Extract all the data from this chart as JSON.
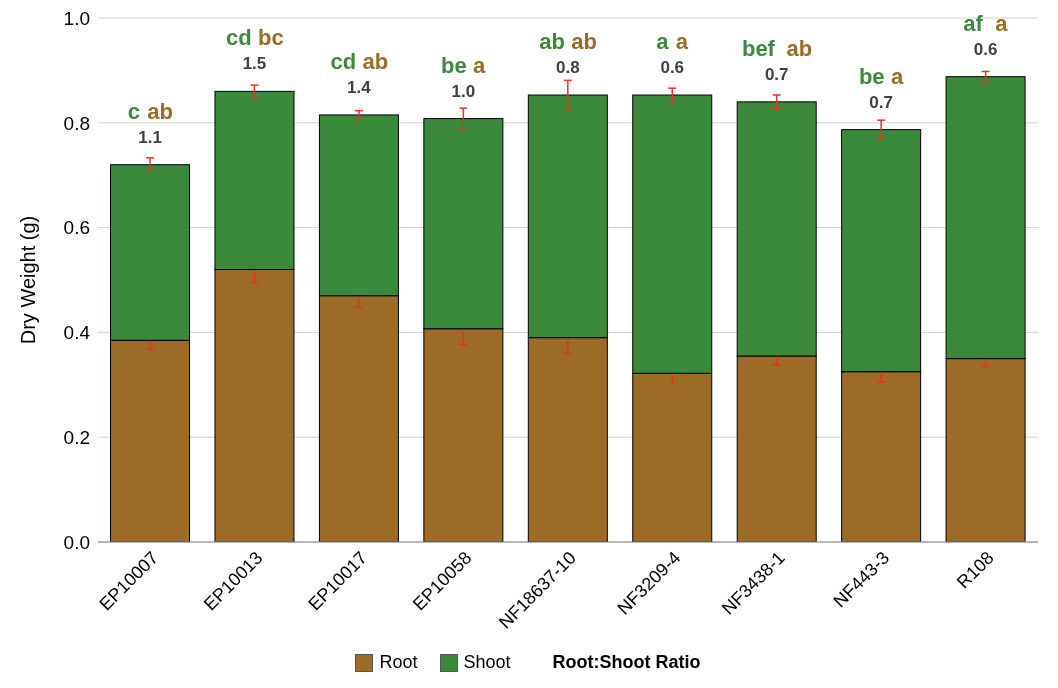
{
  "chart_data": {
    "type": "bar",
    "stacked": true,
    "ylabel": "Dry Weight (g)",
    "categories": [
      "EP10007",
      "EP10013",
      "EP10017",
      "EP10058",
      "NF18637-10",
      "NF3209-4",
      "NF3438-1",
      "NF443-3",
      "R108"
    ],
    "series": [
      {
        "name": "Root",
        "color": "#9c6b26",
        "values": [
          0.385,
          0.52,
          0.47,
          0.407,
          0.39,
          0.322,
          0.355,
          0.325,
          0.35
        ],
        "errors": [
          0.018,
          0.025,
          0.022,
          0.03,
          0.03,
          0.02,
          0.017,
          0.02,
          0.015
        ]
      },
      {
        "name": "Shoot",
        "color": "#3b8a3b",
        "values": [
          0.335,
          0.34,
          0.345,
          0.401,
          0.463,
          0.531,
          0.485,
          0.462,
          0.538
        ],
        "errors": [
          0.013,
          0.012,
          0.008,
          0.02,
          0.028,
          0.013,
          0.013,
          0.018,
          0.01
        ]
      }
    ],
    "ylim": [
      0,
      1
    ],
    "yticks": [
      {
        "value": 0,
        "label": "0.0"
      },
      {
        "value": 0.2,
        "label": "0.2"
      },
      {
        "value": 0.4,
        "label": "0.4"
      },
      {
        "value": 0.6,
        "label": "0.6"
      },
      {
        "value": 0.8,
        "label": "0.8"
      },
      {
        "value": 1,
        "label": "1.0"
      }
    ],
    "grid": "y",
    "legend": "bottom",
    "annotations": [
      {
        "text": "1.1",
        "x": "EP10007",
        "y": 0.72
      },
      {
        "text": "c",
        "x": "EP10007",
        "y": 0.72
      },
      {
        "text": "ab",
        "x": "EP10007",
        "y": 0.72
      },
      {
        "text": "1.5",
        "x": "EP10013",
        "y": 0.86
      },
      {
        "text": "cd",
        "x": "EP10013",
        "y": 0.86
      },
      {
        "text": "bc",
        "x": "EP10013",
        "y": 0.86
      },
      {
        "text": "1.4",
        "x": "EP10017",
        "y": 0.815
      },
      {
        "text": "cd",
        "x": "EP10017",
        "y": 0.815
      },
      {
        "text": "ab",
        "x": "EP10017",
        "y": 0.815
      },
      {
        "text": "1.0",
        "x": "EP10058",
        "y": 0.808
      },
      {
        "text": "be",
        "x": "EP10058",
        "y": 0.808
      },
      {
        "text": "a",
        "x": "EP10058",
        "y": 0.808
      },
      {
        "text": "0.8",
        "x": "NF18637-10",
        "y": 0.853
      },
      {
        "text": "ab",
        "x": "NF18637-10",
        "y": 0.853
      },
      {
        "text": "ab",
        "x": "NF18637-10",
        "y": 0.853
      },
      {
        "text": "0.6",
        "x": "NF3209-4",
        "y": 0.853
      },
      {
        "text": "a",
        "x": "NF3209-4",
        "y": 0.853
      },
      {
        "text": "a",
        "x": "NF3209-4",
        "y": 0.853
      },
      {
        "text": "0.7",
        "x": "NF3438-1",
        "y": 0.84
      },
      {
        "text": "bef",
        "x": "NF3438-1",
        "y": 0.84
      },
      {
        "text": "ab",
        "x": "NF3438-1",
        "y": 0.84
      },
      {
        "text": "0.7",
        "x": "NF443-3",
        "y": 0.787
      },
      {
        "text": "be",
        "x": "NF443-3",
        "y": 0.787
      },
      {
        "text": "a",
        "x": "NF443-3",
        "y": 0.787
      },
      {
        "text": "0.6",
        "x": "R108",
        "y": 0.888
      },
      {
        "text": "af",
        "x": "R108",
        "y": 0.888
      },
      {
        "text": "a",
        "x": "R108",
        "y": 0.888
      },
      "Root:Shoot Ratio"
    ]
  }
}
